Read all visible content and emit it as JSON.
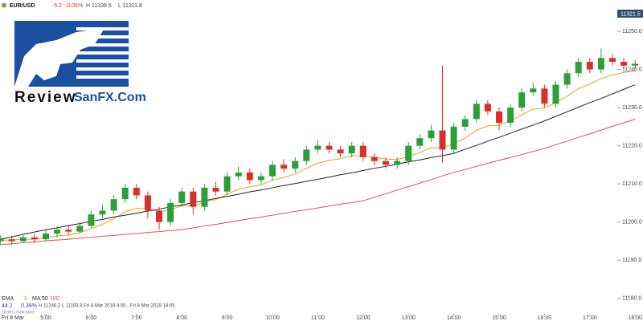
{
  "header": {
    "symbol": "EUR/USD",
    "change": "-5.2",
    "change_pct": "-0.05%",
    "high": "H 11338.5",
    "low": "L 11311.8",
    "price_tag": "11321.5"
  },
  "logo": {
    "word1": "Review",
    "word2": "SanFX.Com"
  },
  "footer": {
    "ema_label": "EMA",
    "ma_label": "MA",
    "stats": "44.2",
    "stats_pct": "0.39%",
    "stats_hl": "H 11246.2  L 11193.9  Fri 8 Mar 2019 4:05 - Fri 8 Mar 2019 18:05",
    "note": "Orders indicative",
    "date": "Fri 8 Mar"
  },
  "chart_data": {
    "type": "candlestick",
    "categories": [
      null,
      null,
      null,
      null,
      "5:00",
      null,
      null,
      null,
      "6:00",
      null,
      null,
      null,
      "7:00",
      null,
      null,
      null,
      "8:00",
      null,
      null,
      null,
      "9:00",
      null,
      null,
      null,
      "10:00",
      null,
      null,
      null,
      "11:00",
      null,
      null,
      null,
      "12:00",
      null,
      null,
      null,
      "13:00",
      null,
      null,
      null,
      "14:00",
      null,
      null,
      null,
      "15:00",
      null,
      null,
      null,
      "16:00",
      null,
      null,
      null,
      "17:00",
      null,
      null,
      null,
      "18:00"
    ],
    "open": [
      11195,
      11195.5,
      11195,
      11196,
      11195.5,
      11197,
      11198,
      11197.5,
      11199,
      11202,
      11203,
      11206,
      11209,
      11207,
      11203,
      11200,
      11205,
      11208,
      11204,
      11209,
      11208,
      11212,
      11213,
      11211,
      11212,
      11215,
      11214,
      11216,
      11219,
      11220,
      11219,
      11218,
      11220,
      11217,
      11216,
      11215,
      11216,
      11220,
      11222,
      11224,
      11219,
      11225,
      11227,
      11231,
      11229,
      11226,
      11230,
      11234,
      11235,
      11231,
      11236,
      11239,
      11242,
      11240,
      11243,
      11242,
      11241
    ],
    "high": [
      11196.5,
      11196.5,
      11197,
      11197,
      11198,
      11199,
      11199,
      11200,
      11203,
      11204.5,
      11207,
      11210,
      11210,
      11208,
      11204,
      11206,
      11209,
      11209,
      11210,
      11210.5,
      11213,
      11214.5,
      11214,
      11213,
      11216,
      11216.5,
      11217,
      11220,
      11221.5,
      11221,
      11220,
      11221,
      11221,
      11218,
      11217,
      11217,
      11221,
      11223,
      11225.5,
      11241,
      11226,
      11228,
      11232,
      11232,
      11230,
      11231,
      11235,
      11236.5,
      11236,
      11237,
      11240,
      11243,
      11243,
      11245.5,
      11244,
      11243,
      11242.5
    ],
    "low": [
      11194,
      11194,
      11194.5,
      11194.5,
      11195,
      11196,
      11196.5,
      11197,
      11198.5,
      11201,
      11202,
      11205,
      11206,
      11201,
      11198,
      11199,
      11204,
      11202,
      11203,
      11207,
      11207,
      11211,
      11210,
      11210,
      11211,
      11213,
      11213,
      11215,
      11218,
      11218,
      11217,
      11217,
      11216,
      11215,
      11214,
      11214,
      11215,
      11219,
      11221,
      11215.5,
      11218,
      11224,
      11226,
      11228,
      11224,
      11225,
      11229,
      11233,
      11230,
      11230,
      11235,
      11238,
      11239,
      11239,
      11241,
      11240,
      11240
    ],
    "close": [
      11195.5,
      11195,
      11196,
      11195.5,
      11197,
      11198,
      11197.5,
      11199,
      11202,
      11203,
      11206,
      11209,
      11207,
      11203,
      11200,
      11205,
      11208,
      11204,
      11209,
      11208,
      11212,
      11213,
      11211,
      11212,
      11215,
      11214,
      11216,
      11219,
      11220,
      11219,
      11218,
      11220,
      11217,
      11216,
      11215,
      11216,
      11220,
      11222,
      11224,
      11219,
      11225,
      11227,
      11231,
      11229,
      11226,
      11230,
      11234,
      11235,
      11231,
      11236,
      11239,
      11242,
      11240,
      11243,
      11242,
      11241,
      11241.5
    ],
    "up_color": "#2e9e3a",
    "down_color": "#d9302c",
    "series": [
      {
        "name": "8",
        "color": "#e8a020",
        "values": [
          11195.3,
          11195.3,
          11195.5,
          11195.5,
          11195.9,
          11196.4,
          11196.6,
          11197.2,
          11198.3,
          11199.4,
          11200.9,
          11202.7,
          11203.6,
          11203.5,
          11202.7,
          11203.2,
          11204.3,
          11204.2,
          11205.3,
          11205.9,
          11207.3,
          11208.6,
          11209.2,
          11209.8,
          11211.0,
          11211.7,
          11212.6,
          11214.1,
          11215.4,
          11216.2,
          11216.6,
          11217.4,
          11217.3,
          11217.0,
          11216.5,
          11216.4,
          11217.2,
          11218.2,
          11219.5,
          11219.4,
          11220.6,
          11222.0,
          11224.1,
          11225.2,
          11225.4,
          11226.4,
          11228.1,
          11229.6,
          11229.9,
          11231.3,
          11233.0,
          11235.0,
          11236.1,
          11237.6,
          11238.6,
          11239.2,
          11239.6
        ]
      },
      {
        "name": "50",
        "color": "#222222",
        "values": [
          11195.5,
          11196.1,
          11196.8,
          11197.4,
          11198.0,
          11198.5,
          11199.1,
          11199.6,
          11200.2,
          11200.7,
          11201.3,
          11201.8,
          11202.3,
          11202.9,
          11203.4,
          11204.0,
          11204.5,
          11205.1,
          11205.6,
          11206.2,
          11206.7,
          11207.3,
          11207.9,
          11208.4,
          11209.0,
          11209.6,
          11210.1,
          11210.7,
          11211.2,
          11211.8,
          11212.4,
          11212.9,
          11213.5,
          11214.1,
          11214.6,
          11215.2,
          11215.8,
          11216.3,
          11216.9,
          11217.4,
          11218.0,
          11219.1,
          11220.1,
          11221.2,
          11222.2,
          11223.3,
          11224.4,
          11225.4,
          11226.5,
          11227.7,
          11228.9,
          11230.1,
          11231.3,
          11232.4,
          11233.6,
          11234.8,
          11236.0
        ]
      },
      {
        "name": "100",
        "color": "#d9534f",
        "values": [
          11194.1,
          11194.3,
          11194.6,
          11194.8,
          11195.1,
          11195.3,
          11195.5,
          11195.8,
          11196.0,
          11196.3,
          11196.5,
          11196.8,
          11197.0,
          11197.3,
          11197.5,
          11197.8,
          11198.0,
          11198.5,
          11199.0,
          11199.4,
          11199.9,
          11200.4,
          11200.9,
          11201.3,
          11201.8,
          11202.3,
          11202.8,
          11203.2,
          11203.7,
          11204.2,
          11204.7,
          11205.1,
          11205.6,
          11206.5,
          11207.4,
          11208.4,
          11209.3,
          11210.2,
          11211.1,
          11212.1,
          11213.0,
          11213.8,
          11214.6,
          11215.4,
          11216.2,
          11216.9,
          11217.7,
          11218.5,
          11219.3,
          11220.3,
          11221.2,
          11222.2,
          11223.1,
          11224.1,
          11225.1,
          11226.0,
          11227.0
        ]
      }
    ],
    "ylim": [
      11176.6,
      11258.2
    ],
    "yticks": [
      {
        "value": 11180,
        "label": "11180.0"
      },
      {
        "value": 11190,
        "label": "11190.0"
      },
      {
        "value": 11200,
        "label": "11200.0"
      },
      {
        "value": 11210,
        "label": "11210.0"
      },
      {
        "value": 11220,
        "label": "11220.0"
      },
      {
        "value": 11230,
        "label": "11230.0"
      },
      {
        "value": 11240,
        "label": "11240.0"
      },
      {
        "value": 11250,
        "label": "11250.0"
      }
    ],
    "grid": false
  }
}
